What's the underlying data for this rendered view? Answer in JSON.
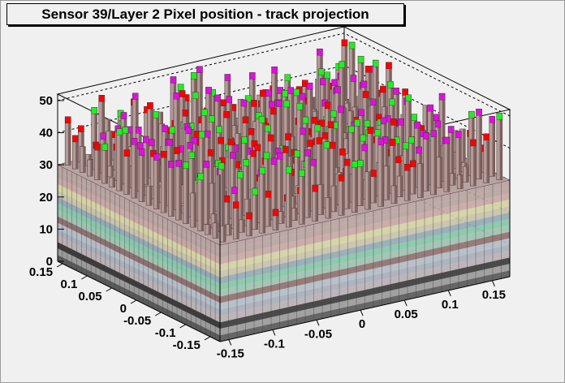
{
  "chart_data": {
    "type": "lego",
    "title": "Sensor 39/Layer 2 Pixel position - track projection",
    "xlabel": "",
    "ylabel": "",
    "zlabel": "",
    "x_ticks": [
      "-0.15",
      "-0.1",
      "-0.05",
      "0",
      "0.05",
      "0.1",
      "0.15"
    ],
    "y_ticks": [
      "0.15",
      "0.1",
      "0.05",
      "0",
      "-0.05",
      "-0.1",
      "-0.15"
    ],
    "z_ticks": [
      "0",
      "10",
      "20",
      "30",
      "40",
      "50"
    ],
    "xlim": [
      -0.17,
      0.17
    ],
    "ylim": [
      -0.17,
      0.17
    ],
    "zlim": [
      0,
      52
    ],
    "bins_x": 34,
    "bins_y": 34,
    "typical_height": 30,
    "max_height": 52,
    "grid": true,
    "palette": [
      "#5a5a5a",
      "#3c3c3c",
      "#9a9a9a",
      "#b9b0b4",
      "#a9aeb8",
      "#b3bdc7",
      "#8e7170",
      "#9ec2b0",
      "#86c7a8",
      "#93aab5",
      "#c9c2a8",
      "#d4d2a4",
      "#c8a8a4",
      "#b8a3a0",
      "#ff0000",
      "#dd11dd",
      "#22ee22"
    ]
  }
}
